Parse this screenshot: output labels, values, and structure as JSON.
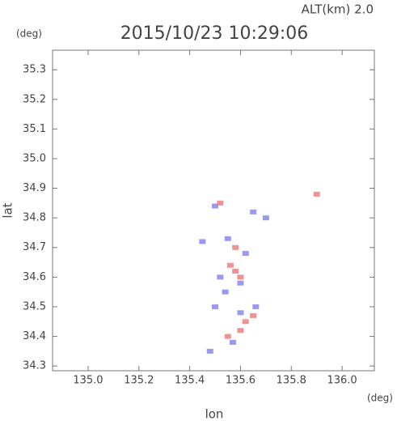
{
  "chart_data": {
    "type": "scatter",
    "title": "2015/10/23 10:29:06",
    "subtitle": "ALT(km) 2.0",
    "y_unit": "(deg)",
    "x_unit": "(deg)",
    "x_label": "lon",
    "y_label": "lat",
    "xlim": [
      134.86,
      136.127
    ],
    "ylim": [
      34.284,
      35.366
    ],
    "xticks": [
      {
        "value": 135,
        "label": "135.0"
      },
      135.2,
      135.4,
      135.6,
      135.8,
      {
        "value": 136,
        "label": "136.0"
      }
    ],
    "yticks": [
      34.3,
      34.4,
      34.5,
      34.6,
      34.7,
      34.8,
      34.9,
      {
        "value": 35,
        "label": "35.0"
      },
      35.1,
      35.2,
      35.3
    ],
    "series": [
      {
        "color": "#8080e8",
        "x": [
          135.45,
          135.55,
          135.6,
          135.5,
          135.65,
          135.7,
          135.52,
          135.57,
          135.48,
          135.62,
          135.54,
          135.6,
          135.66,
          135.5
        ],
        "y": [
          34.72,
          34.73,
          34.48,
          34.5,
          34.82,
          34.8,
          34.6,
          34.38,
          34.35,
          34.68,
          34.55,
          34.58,
          34.5,
          34.84
        ]
      },
      {
        "color": "#e87878",
        "x": [
          135.58,
          135.62,
          135.6,
          135.55,
          135.65,
          135.58,
          135.52,
          135.9,
          135.56,
          135.6
        ],
        "y": [
          34.62,
          34.45,
          34.42,
          34.4,
          34.47,
          34.7,
          34.85,
          34.88,
          34.64,
          34.6
        ]
      }
    ]
  }
}
